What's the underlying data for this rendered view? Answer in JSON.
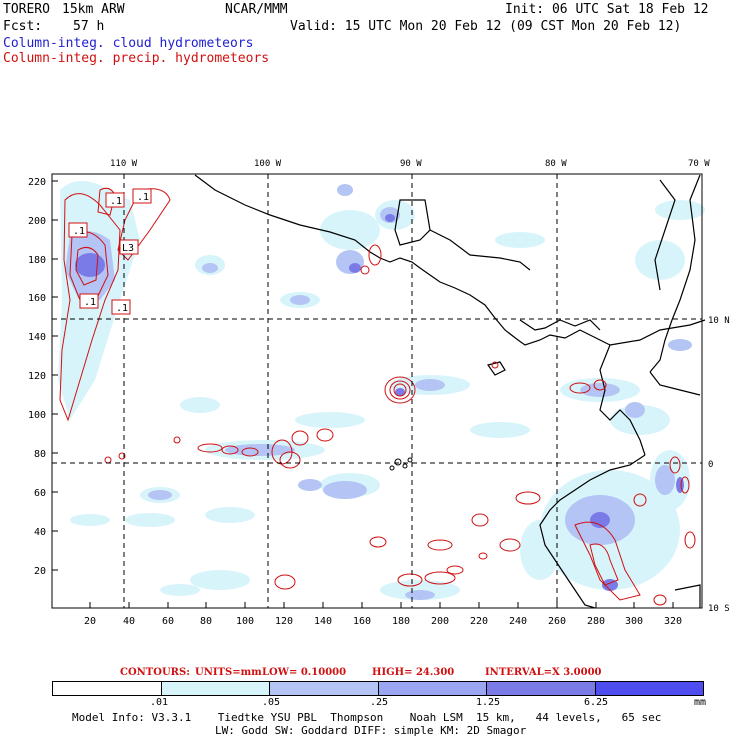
{
  "header": {
    "model": "TORERO",
    "resolution": "15km ARW",
    "org": "NCAR/MMM",
    "init": "Init: 06 UTC Sat 18 Feb 12",
    "fcst_label": "Fcst:",
    "fcst_value": "57 h",
    "valid": "Valid: 15 UTC Mon 20 Feb 12 (09 CST Mon 20 Feb 12)",
    "legend_cloud": "Column-integ. cloud hydrometeors",
    "legend_precip": "Column-integ. precip. hydrometeors"
  },
  "axes": {
    "top_lon": [
      "110 W",
      "100 W",
      "90 W",
      "80 W",
      "70 W"
    ],
    "right_lat": [
      "10 N",
      "0",
      "10 S"
    ],
    "left_y": [
      "220",
      "200",
      "180",
      "160",
      "140",
      "120",
      "100",
      "80",
      "60",
      "40",
      "20"
    ],
    "bottom_x": [
      "20",
      "40",
      "60",
      "80",
      "100",
      "120",
      "140",
      "160",
      "180",
      "200",
      "220",
      "240",
      "260",
      "280",
      "300",
      "320"
    ]
  },
  "contour_labels": [
    ".1",
    ".1",
    ".1",
    "L3",
    ".1",
    ".1"
  ],
  "contours_info": {
    "title": "CONTOURS:",
    "units": "UNITS=mm",
    "low": "LOW= 0.10000",
    "high": "HIGH= 24.300",
    "interval": "INTERVAL=X 3.0000"
  },
  "colorbar": {
    "labels": [
      ".01",
      ".05",
      ".25",
      "1.25",
      "6.25"
    ],
    "unit": "mm",
    "colors": [
      "#ffffff",
      "#d8f4fb",
      "#b4c4f4",
      "#9aa6f2",
      "#7b7be8",
      "#4e4ef0",
      "#1f1fe0"
    ]
  },
  "footer": {
    "line1": "Model Info: V3.3.1    Tiedtke YSU PBL  Thompson    Noah LSM  15 km,   44 levels,   65 sec",
    "line2": "LW: Godd SW: Goddard DIFF: simple KM: 2D Smagor"
  },
  "colors": {
    "cloud": "#1f1fd0",
    "precip": "#d01010",
    "fill_light": "#d8f4fb",
    "fill_mid": "#b4c4f4",
    "fill_dark": "#7b7be8"
  }
}
